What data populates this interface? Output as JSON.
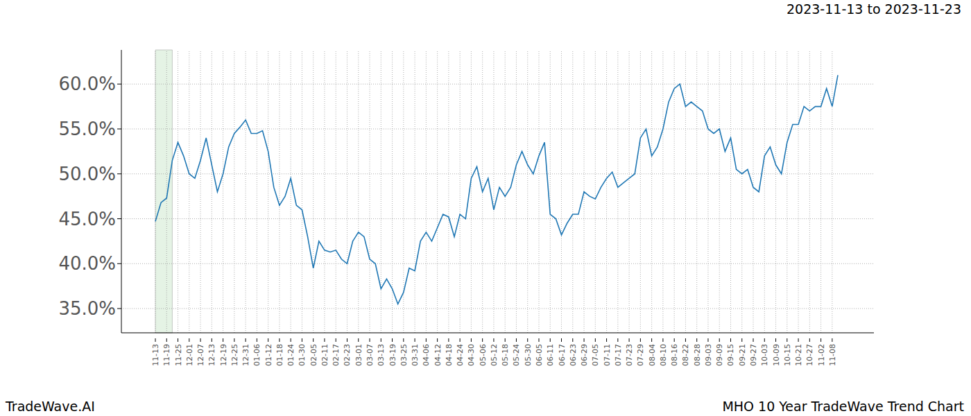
{
  "chart_data": {
    "type": "line",
    "title": "2023-11-13 to 2023-11-23",
    "footer_left": "TradeWave.AI",
    "footer_right": "MHO 10 Year TradeWave Trend Chart",
    "categories": [
      "11-13",
      null,
      "11-19",
      null,
      "11-25",
      null,
      "12-01",
      null,
      "12-07",
      null,
      "12-13",
      null,
      "12-19",
      null,
      "12-25",
      null,
      "12-31",
      null,
      "01-06",
      null,
      "01-12",
      null,
      "01-18",
      null,
      "01-24",
      null,
      "01-30",
      null,
      "02-05",
      null,
      "02-11",
      null,
      "02-17",
      null,
      "02-23",
      null,
      "03-01",
      null,
      "03-07",
      null,
      "03-13",
      null,
      "03-19",
      null,
      "03-25",
      null,
      "03-31",
      null,
      "04-06",
      null,
      "04-12",
      null,
      "04-18",
      null,
      "04-24",
      null,
      "04-30",
      null,
      "05-06",
      null,
      "05-12",
      null,
      "05-18",
      null,
      "05-24",
      null,
      "05-30",
      null,
      "06-05",
      null,
      "06-11",
      null,
      "06-17",
      null,
      "06-23",
      null,
      "06-29",
      null,
      "07-05",
      null,
      "07-11",
      null,
      "07-17",
      null,
      "07-23",
      null,
      "07-29",
      null,
      "08-04",
      null,
      "08-10",
      null,
      "08-16",
      null,
      "08-22",
      null,
      "08-28",
      null,
      "09-03",
      null,
      "09-09",
      null,
      "09-15",
      null,
      "09-21",
      null,
      "09-27",
      null,
      "10-03",
      null,
      "10-09",
      null,
      "10-15",
      null,
      "10-21",
      null,
      "10-27",
      null,
      "11-02",
      null,
      "11-08",
      null
    ],
    "values": [
      44.7,
      46.8,
      47.3,
      51.5,
      53.5,
      52.0,
      50.0,
      49.5,
      51.5,
      54.0,
      51.0,
      48.0,
      50.0,
      53.0,
      54.5,
      55.2,
      56.0,
      54.5,
      54.5,
      54.8,
      52.5,
      48.5,
      46.5,
      47.5,
      49.5,
      46.5,
      46.0,
      43.0,
      39.5,
      42.5,
      41.5,
      41.3,
      41.5,
      40.5,
      40.0,
      42.5,
      43.5,
      43.0,
      40.5,
      40.0,
      37.2,
      38.3,
      37.2,
      35.5,
      36.8,
      39.5,
      39.2,
      42.5,
      43.5,
      42.5,
      44.0,
      45.5,
      45.2,
      43.0,
      45.5,
      45.0,
      49.5,
      50.8,
      48.0,
      49.5,
      46.0,
      48.5,
      47.5,
      48.5,
      51.0,
      52.5,
      51.0,
      50.0,
      52.0,
      53.5,
      45.5,
      45.0,
      43.2,
      44.5,
      45.5,
      45.5,
      48.0,
      47.5,
      47.2,
      48.5,
      49.5,
      50.2,
      48.5,
      49.0,
      49.5,
      50.0,
      54.0,
      55.0,
      52.0,
      53.0,
      55.0,
      58.0,
      59.5,
      60.0,
      57.5,
      58.0,
      57.5,
      57.0,
      55.0,
      54.5,
      55.0,
      52.5,
      54.0,
      50.5,
      50.0,
      50.5,
      48.5,
      48.0,
      52.0,
      53.0,
      51.0,
      50.0,
      53.5,
      55.5,
      55.5,
      57.5,
      57.0,
      57.5,
      57.5,
      59.5,
      57.5,
      61.0
    ],
    "color": "#1f77b4",
    "highlight": [
      0,
      3
    ],
    "ylim": [
      32.3,
      63.8
    ],
    "yticks": [
      {
        "value": 35,
        "label": "35.0%"
      },
      {
        "value": 40,
        "label": "40.0%"
      },
      {
        "value": 45,
        "label": "45.0%"
      },
      {
        "value": 50,
        "label": "50.0%"
      },
      {
        "value": 55,
        "label": "55.0%"
      },
      {
        "value": 60,
        "label": "60.0%"
      }
    ],
    "grid": true
  }
}
